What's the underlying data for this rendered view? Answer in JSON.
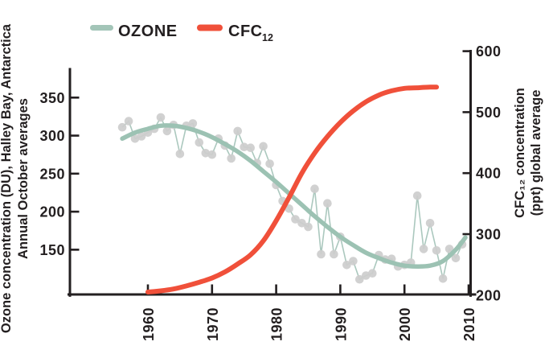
{
  "legend": {
    "ozone_label": "OZONE",
    "cfc_label": "CFC",
    "cfc_sub": "12"
  },
  "axes": {
    "left": {
      "title_line1": "Ozone concentration (DU), Halley Bay, Antarctica",
      "title_line2": "Annual October averages"
    },
    "right": {
      "title_line1": "CFC₁₂ concentration",
      "title_line2": "(ppt) global average"
    }
  },
  "colors": {
    "axis": "#231f20",
    "ozone": "#a3c5b8",
    "ozone_trend": "#9cc2b3",
    "ozone_thin": "#abc8be",
    "marker": "#cdcdcd",
    "cfc": "#f0503a",
    "background": "#ffffff"
  },
  "chart_data": {
    "type": "line",
    "title": "",
    "legend_position": "top",
    "grid": false,
    "x": {
      "ticks": [
        1960,
        1970,
        1980,
        1990,
        2000,
        2010
      ],
      "range": [
        1947.5,
        2010.8
      ]
    },
    "y_left": {
      "label": "Ozone concentration (DU), Halley Bay, Antarctica — Annual October averages",
      "ticks": [
        150,
        200,
        250,
        300,
        350
      ],
      "range": [
        91,
        387
      ]
    },
    "y_right": {
      "label": "CFC₁₂ concentration (ppt) global average",
      "ticks": [
        200,
        300,
        400,
        500,
        600
      ],
      "range": [
        200,
        600
      ]
    },
    "series": [
      {
        "name": "ozone-annual",
        "legend": "OZONE",
        "axis": "left",
        "type": "scatter+line",
        "x": [
          1956,
          1957,
          1958,
          1959,
          1960,
          1961,
          1962,
          1963,
          1964,
          1965,
          1966,
          1967,
          1968,
          1969,
          1970,
          1971,
          1972,
          1973,
          1974,
          1975,
          1976,
          1977,
          1978,
          1979,
          1980,
          1981,
          1982,
          1983,
          1984,
          1985,
          1986,
          1987,
          1988,
          1989,
          1990,
          1991,
          1992,
          1993,
          1994,
          1995,
          1996,
          1997,
          1998,
          1999,
          2000,
          2001,
          2002,
          2003,
          2004,
          2005,
          2006,
          2007,
          2008,
          2009
        ],
        "y": [
          311,
          319,
          296,
          299,
          304,
          309,
          324,
          306,
          314,
          276,
          313,
          316,
          291,
          277,
          275,
          296,
          287,
          270,
          306,
          285,
          284,
          264,
          286,
          263,
          235,
          214,
          204,
          190,
          185,
          180,
          230,
          144,
          211,
          144,
          167,
          130,
          135,
          111,
          116,
          119,
          143,
          137,
          138,
          128,
          130,
          133,
          221,
          151,
          185,
          149,
          112,
          151,
          139,
          157
        ]
      },
      {
        "name": "ozone-trend",
        "legend": "OZONE",
        "axis": "left",
        "type": "smooth-line",
        "x": [
          1956,
          1958,
          1960,
          1962,
          1964,
          1966,
          1968,
          1970,
          1972,
          1974,
          1976,
          1978,
          1980,
          1982,
          1984,
          1986,
          1988,
          1990,
          1992,
          1994,
          1996,
          1998,
          2000,
          2002,
          2004,
          2006,
          2008,
          2009.5
        ],
        "y": [
          296,
          304,
          309,
          313,
          313,
          310,
          305,
          298,
          289,
          279,
          267,
          253,
          239,
          224,
          209,
          194,
          180,
          167,
          156,
          146,
          139,
          133,
          129,
          128,
          129,
          135,
          150,
          166
        ]
      },
      {
        "name": "cfc12",
        "legend": "CFC12",
        "axis": "right",
        "type": "smooth-line",
        "x": [
          1960,
          1962,
          1964,
          1966,
          1968,
          1970,
          1972,
          1974,
          1976,
          1978,
          1980,
          1982,
          1984,
          1986,
          1988,
          1990,
          1992,
          1994,
          1996,
          1998,
          2000,
          2002,
          2004,
          2005
        ],
        "y": [
          205,
          207,
          210,
          215,
          221,
          228,
          238,
          251,
          266,
          289,
          322,
          360,
          400,
          433,
          460,
          483,
          502,
          517,
          528,
          535,
          539,
          540,
          541,
          541
        ]
      }
    ]
  }
}
